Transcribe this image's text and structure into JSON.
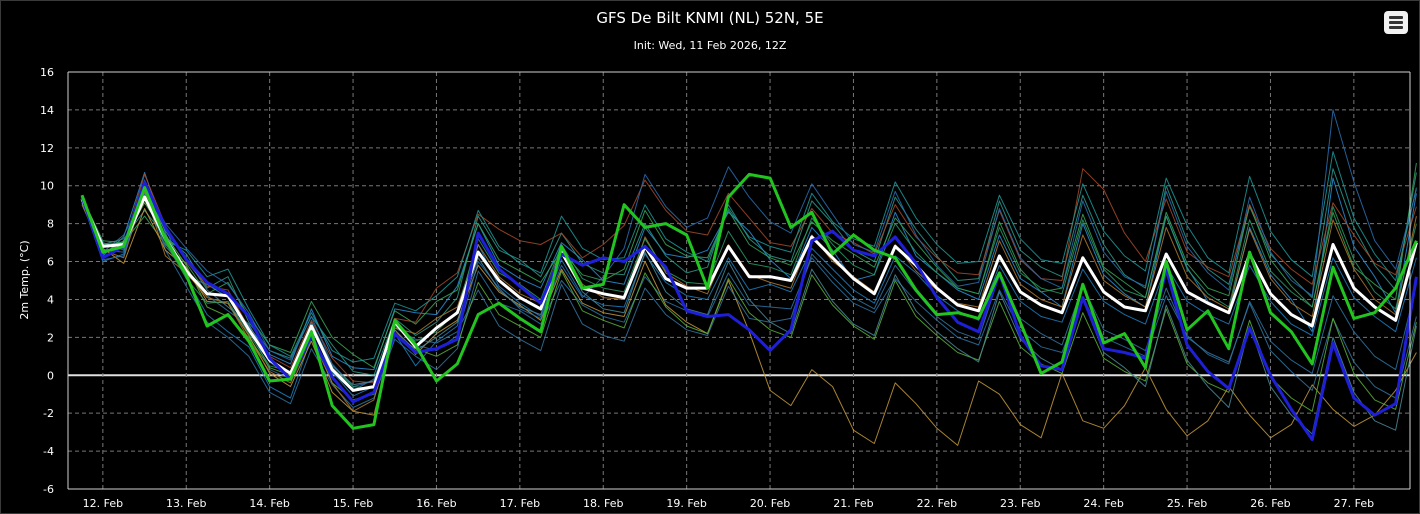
{
  "chart": {
    "title": "GFS De Bilt KNMI (NL) 52N, 5E",
    "subtitle": "Init: Wed, 11 Feb 2026, 12Z",
    "menu_icon": "hamburger-menu-icon"
  },
  "chart_data": {
    "type": "line",
    "title": "GFS De Bilt KNMI (NL) 52N, 5E",
    "subtitle": "Init: Wed, 11 Feb 2026, 12Z",
    "ylabel": "2m Temp. (°C)",
    "xlabel": "",
    "ylim": [
      -6,
      16
    ],
    "yticks": [
      -6,
      -4,
      -2,
      0,
      2,
      4,
      6,
      8,
      10,
      12,
      14,
      16
    ],
    "x_tick_labels": [
      "12. Feb",
      "13. Feb",
      "14. Feb",
      "15. Feb",
      "16. Feb",
      "17. Feb",
      "18. Feb",
      "19. Feb",
      "20. Feb",
      "21. Feb",
      "22. Feb",
      "23. Feb",
      "24. Feb",
      "25. Feb",
      "26. Feb",
      "27. Feb"
    ],
    "x_start": "2026-02-11 18Z",
    "x_end": "2026-02-27 18Z",
    "step_hours": 6,
    "grid": true,
    "legend": "none",
    "series": [
      {
        "color": "#ffffff",
        "width": 3,
        "values": [
          9.3,
          6.8,
          6.9,
          9.4,
          7.2,
          5.5,
          4.3,
          4.2,
          2.4,
          0.8,
          0.1,
          2.6,
          0.3,
          -0.8,
          -0.6,
          2.8,
          1.5,
          2.5,
          3.3,
          6.5,
          5.0,
          4.1,
          3.5,
          6.5,
          4.6,
          4.3,
          4.1,
          6.8,
          5.1,
          4.6,
          4.6,
          6.8,
          5.2,
          5.2,
          5.0,
          7.3,
          6.2,
          5.1,
          4.3,
          6.8,
          5.8,
          4.6,
          3.7,
          3.4,
          6.3,
          4.4,
          3.7,
          3.3,
          6.2,
          4.4,
          3.6,
          3.4,
          6.4,
          4.4,
          3.8,
          3.3,
          6.4,
          4.3,
          3.2,
          2.6,
          6.9,
          4.6,
          3.6,
          2.9,
          7.0
        ]
      },
      {
        "color": "#1f1fd8",
        "width": 3,
        "values": [
          9.4,
          6.2,
          6.8,
          10.2,
          7.8,
          6.1,
          4.9,
          4.3,
          3.1,
          0.9,
          -0.2,
          2.1,
          -0.1,
          -1.4,
          -0.9,
          2.2,
          1.2,
          1.4,
          1.9,
          7.5,
          5.6,
          4.7,
          3.8,
          6.4,
          5.8,
          6.2,
          6.0,
          6.8,
          5.7,
          3.4,
          3.1,
          3.2,
          2.4,
          1.3,
          2.4,
          7.1,
          7.6,
          6.6,
          6.3,
          7.3,
          5.9,
          4.1,
          2.8,
          2.3,
          5.4,
          2.1,
          0.5,
          0.3,
          4.1,
          1.4,
          1.2,
          0.9,
          5.6,
          1.6,
          0.2,
          -0.7,
          2.5,
          0.0,
          -1.8,
          -3.4,
          1.7,
          -1.2,
          -2.1,
          -1.5,
          5.2
        ]
      },
      {
        "color": "#22c41f",
        "width": 3,
        "values": [
          9.5,
          6.5,
          6.8,
          9.9,
          7.2,
          5.3,
          2.6,
          3.2,
          1.8,
          -0.3,
          -0.2,
          2.3,
          -1.6,
          -2.8,
          -2.6,
          2.9,
          1.6,
          -0.3,
          0.6,
          3.2,
          3.8,
          3.0,
          2.3,
          6.8,
          4.6,
          4.8,
          9.0,
          7.8,
          8.0,
          7.4,
          4.6,
          9.4,
          10.6,
          10.4,
          7.8,
          8.6,
          6.4,
          7.4,
          6.6,
          6.2,
          4.5,
          3.2,
          3.3,
          3.0,
          5.4,
          2.8,
          0.1,
          0.7,
          4.8,
          1.7,
          2.2,
          0.4,
          6.0,
          2.4,
          3.4,
          1.4,
          6.5,
          3.3,
          2.3,
          0.6,
          5.7,
          3.0,
          3.3,
          4.6,
          7.1
        ]
      },
      {
        "color": "#2a8fd8",
        "width": 1,
        "values": [
          9.1,
          6.3,
          7.3,
          10.7,
          7.5,
          5.2,
          4.8,
          4.1,
          2.6,
          1.1,
          0.6,
          3.5,
          1.0,
          0.4,
          0.3,
          3.5,
          3.3,
          3.2,
          4.7,
          8.0,
          5.8,
          5.1,
          4.6,
          7.0,
          6.1,
          5.0,
          4.8,
          7.8,
          6.4,
          6.2,
          6.6,
          8.6,
          7.6,
          6.1,
          5.1,
          7.8,
          6.6,
          5.0,
          5.3,
          8.6,
          6.3,
          5.4,
          4.5,
          4.0,
          7.4,
          5.1,
          4.4,
          3.6,
          8.0,
          5.3,
          4.3,
          3.6,
          8.4,
          5.7,
          3.9,
          3.3,
          7.8,
          5.3,
          4.0,
          2.3,
          10.4,
          6.8,
          5.2,
          3.3,
          9.6
        ]
      },
      {
        "color": "#1e7fbf",
        "width": 1,
        "values": [
          9.2,
          6.0,
          6.4,
          9.6,
          7.8,
          5.1,
          3.2,
          2.3,
          1.5,
          -0.6,
          -1.2,
          2.0,
          0.2,
          -1.1,
          -0.6,
          2.2,
          0.5,
          1.8,
          2.6,
          6.9,
          4.7,
          3.8,
          3.1,
          6.1,
          4.2,
          3.7,
          3.6,
          6.4,
          4.9,
          4.2,
          4.0,
          6.2,
          4.5,
          4.8,
          4.4,
          6.7,
          5.6,
          4.5,
          3.8,
          6.3,
          5.4,
          4.2,
          3.4,
          2.9,
          5.8,
          3.9,
          3.1,
          2.8,
          5.6,
          3.9,
          3.2,
          2.7,
          5.8,
          3.9,
          3.2,
          2.7,
          5.8,
          3.9,
          2.7,
          2.1,
          6.2,
          4.1,
          3.1,
          2.3,
          6.2
        ]
      },
      {
        "color": "#2f9a8a",
        "width": 1,
        "values": [
          9.3,
          6.9,
          7.2,
          8.7,
          7.3,
          6.4,
          4.6,
          5.2,
          2.8,
          1.3,
          0.9,
          3.1,
          1.6,
          0.2,
          0.0,
          3.0,
          2.1,
          2.8,
          4.1,
          8.4,
          6.6,
          6.1,
          5.2,
          7.5,
          5.9,
          5.4,
          5.3,
          8.0,
          6.3,
          5.4,
          5.7,
          9.0,
          7.2,
          6.3,
          6.0,
          9.2,
          8.0,
          6.6,
          6.0,
          9.4,
          7.7,
          6.3,
          5.0,
          5.1,
          9.2,
          6.6,
          5.7,
          5.2,
          9.5,
          6.9,
          5.3,
          4.6,
          10.0,
          7.1,
          5.6,
          4.8,
          8.9,
          6.4,
          5.2,
          4.1,
          10.9,
          7.8,
          5.8,
          4.5,
          10.7
        ]
      },
      {
        "color": "#3aa658",
        "width": 1,
        "values": [
          9.4,
          7.1,
          7.0,
          8.4,
          6.9,
          5.9,
          4.3,
          4.9,
          3.1,
          1.6,
          1.2,
          3.9,
          2.0,
          1.1,
          0.4,
          3.4,
          2.7,
          3.9,
          4.5,
          8.0,
          6.1,
          5.5,
          4.9,
          6.6,
          5.3,
          5.0,
          5.6,
          8.7,
          6.9,
          6.3,
          6.2,
          8.7,
          6.9,
          6.2,
          5.8,
          8.1,
          7.1,
          6.4,
          5.7,
          8.3,
          7.0,
          5.7,
          4.6,
          4.3,
          8.1,
          5.6,
          4.4,
          4.6,
          8.5,
          5.7,
          4.9,
          4.1,
          8.6,
          5.9,
          4.6,
          4.2,
          9.0,
          6.1,
          4.7,
          3.6,
          8.6,
          5.7,
          4.8,
          4.0,
          11.2
        ]
      },
      {
        "color": "#2d74a6",
        "width": 1,
        "values": [
          9.0,
          6.6,
          6.5,
          10.1,
          6.6,
          4.7,
          2.8,
          2.0,
          1.0,
          -0.9,
          -1.5,
          1.4,
          -0.5,
          -1.7,
          -1.2,
          1.9,
          1.0,
          0.3,
          1.4,
          5.5,
          3.8,
          3.4,
          2.7,
          5.0,
          3.7,
          3.1,
          2.8,
          5.2,
          3.9,
          3.4,
          3.1,
          5.4,
          3.7,
          3.6,
          3.5,
          6.2,
          4.9,
          3.8,
          3.3,
          5.1,
          3.9,
          2.9,
          2.0,
          1.6,
          4.5,
          2.4,
          1.5,
          1.2,
          4.1,
          2.0,
          1.5,
          1.0,
          4.2,
          2.1,
          1.1,
          0.6,
          3.9,
          1.8,
          0.8,
          0.1,
          4.2,
          2.3,
          1.0,
          0.3,
          4.8
        ]
      },
      {
        "color": "#c69a3b",
        "width": 1,
        "values": [
          9.2,
          6.7,
          5.9,
          8.8,
          6.6,
          5.7,
          3.9,
          3.8,
          2.1,
          0.1,
          -0.6,
          1.8,
          -0.9,
          -1.9,
          -2.1,
          2.4,
          1.1,
          2.2,
          2.9,
          5.8,
          4.4,
          3.7,
          2.9,
          5.6,
          3.8,
          3.3,
          3.1,
          6.0,
          3.7,
          2.8,
          2.2,
          5.0,
          2.3,
          -0.8,
          -1.6,
          0.3,
          -0.6,
          -2.9,
          -3.6,
          -0.4,
          -1.5,
          -2.8,
          -3.7,
          -0.3,
          -1.0,
          -2.6,
          -3.3,
          0.1,
          -2.4,
          -2.8,
          -1.6,
          0.4,
          -1.8,
          -3.2,
          -2.4,
          -0.6,
          -2.1,
          -3.3,
          -2.6,
          -0.5,
          -1.8,
          -2.7,
          -2.1,
          -0.8,
          1.2
        ]
      },
      {
        "color": "#a64a2a",
        "width": 1,
        "values": [
          9.5,
          6.8,
          6.9,
          10.6,
          7.9,
          6.0,
          4.7,
          4.5,
          2.5,
          1.0,
          0.4,
          2.9,
          0.9,
          -0.3,
          -0.4,
          3.0,
          2.8,
          4.6,
          5.4,
          8.5,
          7.7,
          7.1,
          6.9,
          7.5,
          6.2,
          6.9,
          7.9,
          10.3,
          8.7,
          7.6,
          7.4,
          9.6,
          8.3,
          7.0,
          6.8,
          8.8,
          7.5,
          7.0,
          6.4,
          9.0,
          7.3,
          6.2,
          5.4,
          5.3,
          8.7,
          6.1,
          5.1,
          5.0,
          10.9,
          9.8,
          7.5,
          6.0,
          9.3,
          6.5,
          5.7,
          5.2,
          9.0,
          6.7,
          5.6,
          4.8,
          9.1,
          7.4,
          5.9,
          5.3,
          8.9
        ]
      },
      {
        "color": "#3575a0",
        "width": 1,
        "values": [
          9.1,
          6.5,
          7.4,
          9.5,
          6.8,
          5.6,
          4.2,
          3.4,
          2.6,
          0.3,
          -0.2,
          2.6,
          0.1,
          -0.8,
          -0.2,
          2.5,
          1.9,
          1.7,
          2.3,
          4.5,
          2.6,
          1.9,
          1.3,
          4.8,
          2.7,
          2.1,
          1.8,
          4.6,
          3.2,
          2.4,
          2.1,
          4.7,
          3.0,
          2.8,
          3.0,
          6.4,
          5.2,
          4.1,
          3.5,
          5.8,
          4.4,
          3.1,
          2.3,
          1.9,
          5.3,
          3.0,
          2.2,
          1.6,
          4.7,
          2.4,
          1.9,
          1.3,
          4.6,
          2.0,
          1.2,
          0.7,
          3.8,
          1.3,
          0.2,
          -0.8,
          3.0,
          0.7,
          -0.6,
          -1.2,
          3.1
        ]
      },
      {
        "color": "#1d9a9a",
        "width": 1,
        "values": [
          9.3,
          7.0,
          6.6,
          10.3,
          7.1,
          6.6,
          5.2,
          5.6,
          3.5,
          1.6,
          1.0,
          3.3,
          1.3,
          0.7,
          0.9,
          3.8,
          3.4,
          4.2,
          5.2,
          8.7,
          6.8,
          5.9,
          5.4,
          8.4,
          6.7,
          6.1,
          6.2,
          9.0,
          7.2,
          6.5,
          6.0,
          8.8,
          7.3,
          6.8,
          6.5,
          9.6,
          8.1,
          7.2,
          6.8,
          10.2,
          8.3,
          6.9,
          5.9,
          6.0,
          9.5,
          7.2,
          6.1,
          5.9,
          10.1,
          7.6,
          6.3,
          5.5,
          10.4,
          7.9,
          6.2,
          5.4,
          10.5,
          7.6,
          6.1,
          5.2,
          11.8,
          8.3,
          6.4,
          5.0,
          9.9
        ]
      },
      {
        "color": "#5bb03a",
        "width": 1,
        "values": [
          9.2,
          6.4,
          7.1,
          9.1,
          7.4,
          5.8,
          3.6,
          3.1,
          2.0,
          0.4,
          0.0,
          2.2,
          -0.4,
          -1.3,
          -1.0,
          2.1,
          1.4,
          1.0,
          1.6,
          4.9,
          3.2,
          2.6,
          2.0,
          5.5,
          3.4,
          2.9,
          2.5,
          5.4,
          3.6,
          2.6,
          2.2,
          5.1,
          3.3,
          2.4,
          2.0,
          5.3,
          3.7,
          2.6,
          1.9,
          5.0,
          3.1,
          2.1,
          1.2,
          0.8,
          3.9,
          1.5,
          0.6,
          0.1,
          3.3,
          0.9,
          0.2,
          -0.3,
          3.5,
          0.6,
          -0.4,
          -0.9,
          2.9,
          -0.1,
          -1.2,
          -1.9,
          3.0,
          0.1,
          -1.3,
          -1.8,
          2.8
        ]
      },
      {
        "color": "#b07a2f",
        "width": 1,
        "values": [
          9.0,
          6.6,
          6.2,
          9.7,
          6.3,
          5.4,
          4.1,
          3.8,
          1.9,
          0.2,
          -0.4,
          2.0,
          -0.4,
          -1.9,
          -1.3,
          2.5,
          2.2,
          3.0,
          3.6,
          6.9,
          5.2,
          4.3,
          3.8,
          6.7,
          4.8,
          4.1,
          4.0,
          7.3,
          5.4,
          4.7,
          4.3,
          6.9,
          5.3,
          4.9,
          4.6,
          7.4,
          6.0,
          5.2,
          4.4,
          6.9,
          5.5,
          4.5,
          3.8,
          3.6,
          7.1,
          4.8,
          4.0,
          3.6,
          7.4,
          5.0,
          4.2,
          3.6,
          7.8,
          5.2,
          4.1,
          3.5,
          7.7,
          5.1,
          3.8,
          3.1,
          8.2,
          5.6,
          4.0,
          3.2,
          8.4
        ]
      },
      {
        "color": "#2a6fb3",
        "width": 1,
        "values": [
          9.4,
          6.1,
          6.3,
          10.0,
          8.0,
          6.7,
          5.5,
          4.8,
          3.3,
          1.3,
          0.8,
          3.1,
          0.6,
          -0.6,
          -0.3,
          2.8,
          1.6,
          1.3,
          2.1,
          6.0,
          4.6,
          3.5,
          3.0,
          5.8,
          4.1,
          5.2,
          6.7,
          10.6,
          8.9,
          7.8,
          8.3,
          11.0,
          9.4,
          8.1,
          7.5,
          10.1,
          8.5,
          6.9,
          6.5,
          9.7,
          7.4,
          5.8,
          4.7,
          4.9,
          8.8,
          6.2,
          5.1,
          4.6,
          9.2,
          6.5,
          5.2,
          4.7,
          9.7,
          6.8,
          5.4,
          4.5,
          9.4,
          6.5,
          5.0,
          4.2,
          14.0,
          10.2,
          7.1,
          5.6,
          9.8
        ]
      },
      {
        "color": "#2c9a6a",
        "width": 1,
        "values": [
          9.2,
          6.9,
          7.0,
          9.3,
          7.0,
          5.1,
          3.8,
          3.9,
          2.2,
          0.5,
          0.2,
          2.4,
          0.4,
          -0.6,
          -0.7,
          2.6,
          1.8,
          2.3,
          3.4,
          7.2,
          5.4,
          4.8,
          4.0,
          6.9,
          5.1,
          4.6,
          4.4,
          7.2,
          5.5,
          4.9,
          4.8,
          7.6,
          5.9,
          5.7,
          5.3,
          8.3,
          6.9,
          5.8,
          5.3,
          8.0,
          6.5,
          5.4,
          4.6,
          4.3,
          7.8,
          5.4,
          4.6,
          4.3,
          8.2,
          5.6,
          4.5,
          4.1,
          8.4,
          5.6,
          4.3,
          3.6,
          8.2,
          5.5,
          4.4,
          3.6,
          8.9,
          6.1,
          4.4,
          3.5,
          8.0
        ]
      },
      {
        "color": "#4a8a9a",
        "width": 1,
        "values": [
          9.3,
          6.6,
          6.7,
          9.8,
          7.6,
          6.2,
          4.5,
          3.6,
          2.7,
          0.7,
          -0.1,
          2.8,
          0.5,
          -0.5,
          -0.3,
          2.4,
          1.3,
          2.0,
          2.8,
          6.2,
          4.5,
          3.6,
          3.2,
          6.6,
          4.4,
          3.5,
          3.3,
          6.5,
          4.4,
          3.5,
          3.2,
          6.0,
          4.0,
          2.8,
          2.2,
          5.6,
          3.9,
          2.7,
          2.1,
          5.3,
          3.4,
          2.3,
          1.4,
          0.7,
          4.4,
          1.9,
          0.9,
          0.3,
          4.0,
          1.2,
          0.4,
          -0.6,
          3.7,
          0.8,
          -0.6,
          -1.7,
          2.6,
          -0.6,
          -2.1,
          -3.1,
          2.0,
          -0.9,
          -2.4,
          -2.9,
          2.6
        ]
      }
    ]
  }
}
